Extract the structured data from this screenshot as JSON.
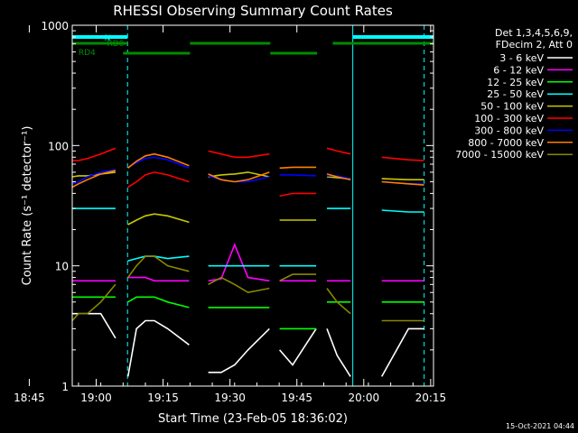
{
  "chart_data": {
    "type": "line",
    "title": "RHESSI Observing Summary Count Rates",
    "xlabel": "Start Time (23-Feb-05 18:36:02)",
    "ylabel": "Count Rate (s⁻¹ detector⁻¹)",
    "yscale": "log",
    "ylim": [
      1,
      1000
    ],
    "xlim_minutes": [
      18.6,
      99.6
    ],
    "x_ticks": [
      "18:45",
      "19:00",
      "19:15",
      "19:30",
      "19:45",
      "20:00",
      "20:15"
    ],
    "y_ticks": [
      "1",
      "10",
      "100",
      "1000"
    ],
    "legend_header": [
      "Det 1,3,4,5,6,9,",
      "FDecim 2, Att 0"
    ],
    "legend_placement": "right",
    "timestamp": "15-Oct-2021 04:44",
    "flags": [
      {
        "label": "N",
        "color": "#00ffff",
        "segments": [
          [
            18.6,
            31.0
          ],
          [
            81.5,
            99.6
          ]
        ]
      },
      {
        "label": "RD0",
        "color": "#008c00",
        "segments": [
          [
            18.6,
            31.0
          ],
          [
            45.0,
            63.0
          ],
          [
            77.0,
            99.6
          ]
        ]
      },
      {
        "label": "RD4",
        "color": "#008c00",
        "segments": [
          [
            30.0,
            45.0
          ],
          [
            63.0,
            73.5
          ]
        ]
      }
    ],
    "gaps": [
      [
        28.5,
        31.0
      ],
      [
        45.0,
        49.0
      ],
      [
        63.0,
        65.0
      ],
      [
        73.5,
        75.5
      ],
      [
        81.0,
        83.0
      ]
    ],
    "vlines": [
      {
        "x": 18.6,
        "style": "solid",
        "color": "#00ffff"
      },
      {
        "x": 31.0,
        "style": "dashed",
        "color": "#00ffff"
      },
      {
        "x": 81.5,
        "style": "solid",
        "color": "#00ffff"
      },
      {
        "x": 97.5,
        "style": "dashed",
        "color": "#00ffff"
      }
    ],
    "series": [
      {
        "name": "3 - 6 keV",
        "color": "#ffffff",
        "values": [
          4,
          4,
          4,
          4,
          2.5,
          1.2,
          3,
          3.5,
          3.5,
          3,
          2.2,
          1.3,
          1.3,
          1.5,
          2,
          3,
          2,
          1.5,
          3,
          3,
          1.8,
          1.2,
          1.2,
          3,
          3
        ]
      },
      {
        "name": "6 - 12 keV",
        "color": "#ff00ff",
        "values": [
          7.5,
          7.5,
          7.5,
          7.5,
          7.5,
          8,
          8,
          8,
          7.5,
          7.5,
          7.5,
          7.5,
          7.8,
          15,
          8,
          7.5,
          7.5,
          7.5,
          7.5,
          7.5,
          7.5,
          7.5,
          7.5,
          7.5,
          7.5
        ]
      },
      {
        "name": "12 - 25 keV",
        "color": "#00ff00",
        "values": [
          5.5,
          5.5,
          5.5,
          5.5,
          5.5,
          5,
          5.5,
          5.5,
          5.5,
          5,
          4.5,
          4.5,
          4.5,
          4.5,
          4.5,
          4.5,
          3,
          3,
          3,
          5,
          5,
          5,
          5,
          5,
          5
        ]
      },
      {
        "name": "25 - 50 keV",
        "color": "#00ffff",
        "values": [
          30,
          30,
          30,
          30,
          30,
          11,
          11.5,
          12,
          12,
          11.5,
          12,
          10,
          10,
          10,
          10,
          10,
          10,
          10,
          10,
          30,
          30,
          30,
          29,
          28,
          28
        ]
      },
      {
        "name": "50 - 100 keV",
        "color": "#c8c800",
        "values": [
          55,
          56,
          56,
          58,
          60,
          22,
          24,
          26,
          27,
          26,
          23,
          55,
          57,
          58,
          60,
          55,
          24,
          24,
          24,
          55,
          54,
          53,
          53,
          52,
          52
        ]
      },
      {
        "name": "100 - 300 keV",
        "color": "#ff0000",
        "values": [
          75,
          75,
          78,
          85,
          95,
          45,
          50,
          57,
          60,
          57,
          50,
          90,
          85,
          80,
          80,
          85,
          38,
          40,
          40,
          95,
          90,
          85,
          80,
          76,
          75
        ]
      },
      {
        "name": "300 - 800 keV",
        "color": "#0000ff",
        "values": [
          48,
          50,
          55,
          60,
          63,
          66,
          72,
          78,
          80,
          76,
          65,
          56,
          52,
          50,
          50,
          55,
          57,
          57,
          56,
          56,
          56,
          53,
          50,
          48,
          48
        ]
      },
      {
        "name": "800 - 7000 keV",
        "color": "#ff8000",
        "values": [
          45,
          48,
          52,
          58,
          62,
          65,
          74,
          82,
          85,
          80,
          68,
          58,
          52,
          50,
          52,
          60,
          65,
          66,
          66,
          58,
          55,
          52,
          50,
          48,
          47
        ]
      },
      {
        "name": "7000 - 15000 keV",
        "color": "#888800",
        "values": [
          3.5,
          4,
          4,
          5,
          7,
          8,
          10,
          12,
          12,
          10,
          9,
          7,
          8,
          7,
          6,
          6.5,
          7.5,
          8.5,
          8.5,
          6.5,
          5,
          4,
          3.5,
          3.5,
          3.5
        ]
      }
    ],
    "x_minutes": [
      18.6,
      20,
      22,
      25,
      28.3,
      31.1,
      33,
      35,
      37,
      40,
      44.8,
      49.1,
      52,
      55,
      58,
      62.8,
      65.1,
      68,
      73.3,
      75.7,
      78,
      81,
      88,
      94,
      97.5
    ]
  }
}
